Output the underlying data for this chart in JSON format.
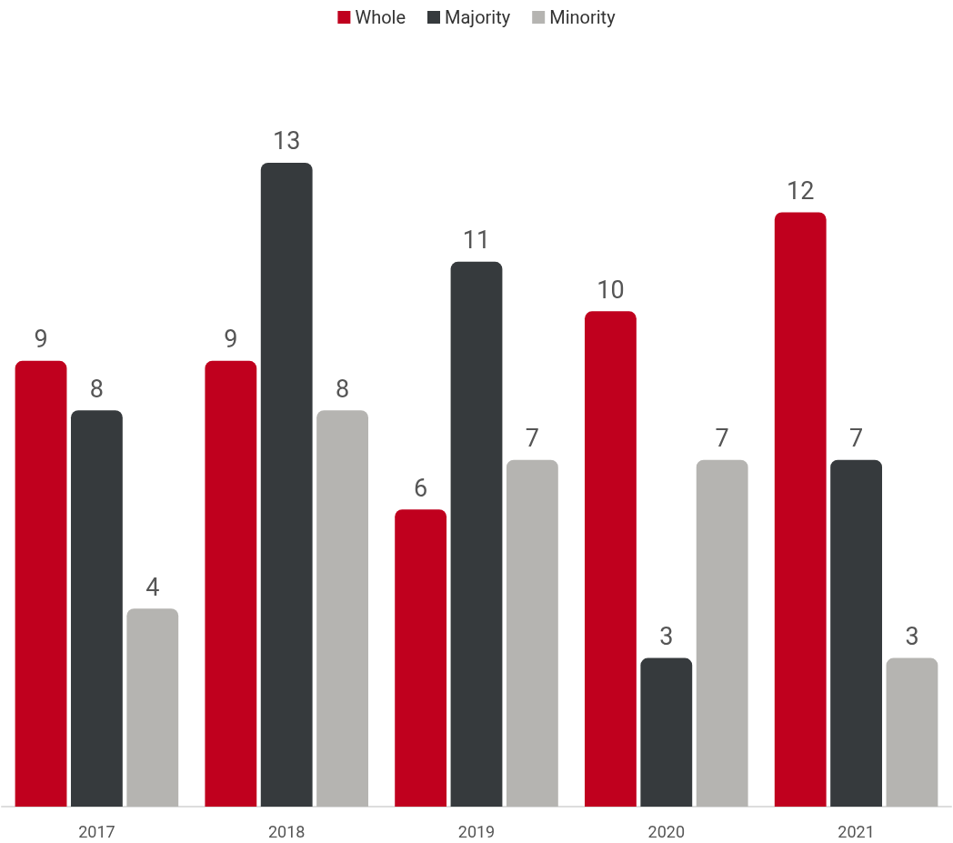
{
  "chart_data": {
    "type": "bar",
    "categories": [
      "2017",
      "2018",
      "2019",
      "2020",
      "2021"
    ],
    "series": [
      {
        "name": "Whole",
        "color": "#c0001e",
        "values": [
          9,
          9,
          6,
          10,
          12
        ]
      },
      {
        "name": "Majority",
        "color": "#363a3d",
        "values": [
          8,
          13,
          11,
          3,
          7
        ]
      },
      {
        "name": "Minority",
        "color": "#b5b4b1",
        "values": [
          4,
          8,
          7,
          7,
          3
        ]
      }
    ],
    "data_labels": true,
    "legend": "top"
  }
}
